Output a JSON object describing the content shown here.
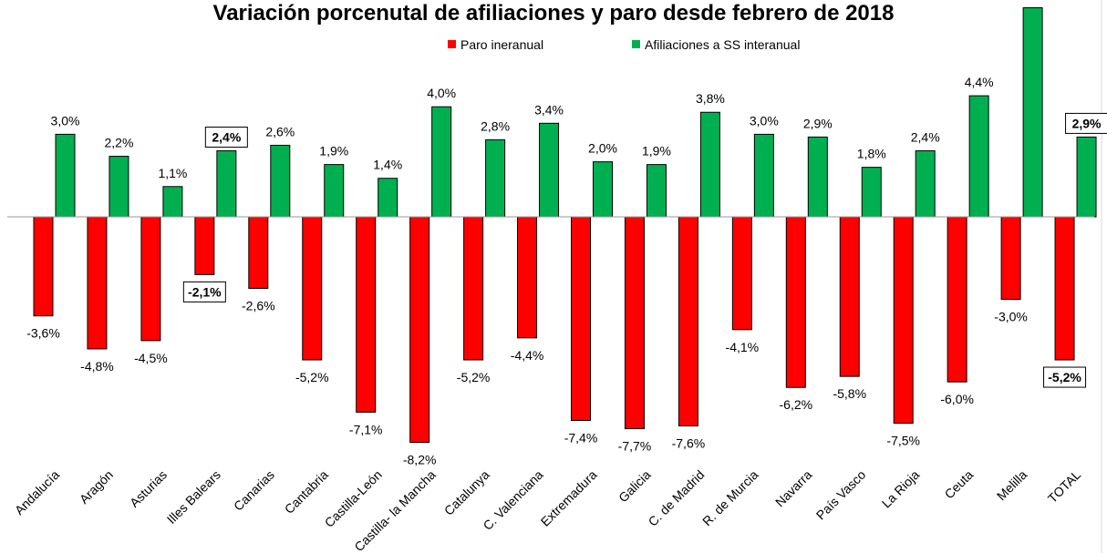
{
  "chart_data": {
    "type": "bar",
    "title": "Variación porcenutal de afiliaciones y paro desde febrero de 2018",
    "xlabel": "",
    "ylabel": "",
    "ylim": [
      -12.2,
      7.9
    ],
    "grid": false,
    "legend_position": "top",
    "categories": [
      "Andalucía",
      "Aragón",
      "Asturias",
      "Illes Balears",
      "Canarias",
      "Cantabria",
      "Castilla-León",
      "Castilla- la Mancha",
      "Catalunya",
      "C. Valenciana",
      "Extremadura",
      "Galicia",
      "C. de Madrid",
      "R. de Murcia",
      "Navarra",
      "País Vasco",
      "La Rioja",
      "Ceuta",
      "Melilla",
      "TOTAL"
    ],
    "series": [
      {
        "name": "Paro ineranual",
        "color": "#FF0000",
        "values": [
          -3.6,
          -4.8,
          -4.5,
          -2.1,
          -2.6,
          -5.2,
          -7.1,
          -8.2,
          -5.2,
          -4.4,
          -7.4,
          -7.7,
          -7.6,
          -4.1,
          -6.2,
          -5.8,
          -7.5,
          -6.0,
          -3.0,
          -5.2
        ],
        "labels": [
          "-3,6%",
          "-4,8%",
          "-4,5%",
          "-2,1%",
          "-2,6%",
          "-5,2%",
          "-7,1%",
          "-8,2%",
          "-5,2%",
          "-4,4%",
          "-7,4%",
          "-7,7%",
          "-7,6%",
          "-4,1%",
          "-6,2%",
          "-5,8%",
          "-7,5%",
          "-6,0%",
          "-3,0%",
          "-5,2%"
        ]
      },
      {
        "name": "Afiliaciones a SS interanual",
        "color": "#00B050",
        "values": [
          3.0,
          2.2,
          1.1,
          2.4,
          2.6,
          1.9,
          1.4,
          4.0,
          2.8,
          3.4,
          2.0,
          1.9,
          3.8,
          3.0,
          2.9,
          1.8,
          2.4,
          4.4,
          7.6,
          2.9
        ],
        "labels": [
          "3,0%",
          "2,2%",
          "1,1%",
          "2,4%",
          "2,6%",
          "1,9%",
          "1,4%",
          "4,0%",
          "2,8%",
          "3,4%",
          "2,0%",
          "1,9%",
          "3,8%",
          "3,0%",
          "2,9%",
          "1,8%",
          "2,4%",
          "4,4%",
          "",
          "2,9%"
        ]
      }
    ],
    "highlighted_categories": [
      "Illes Balears",
      "TOTAL"
    ]
  }
}
